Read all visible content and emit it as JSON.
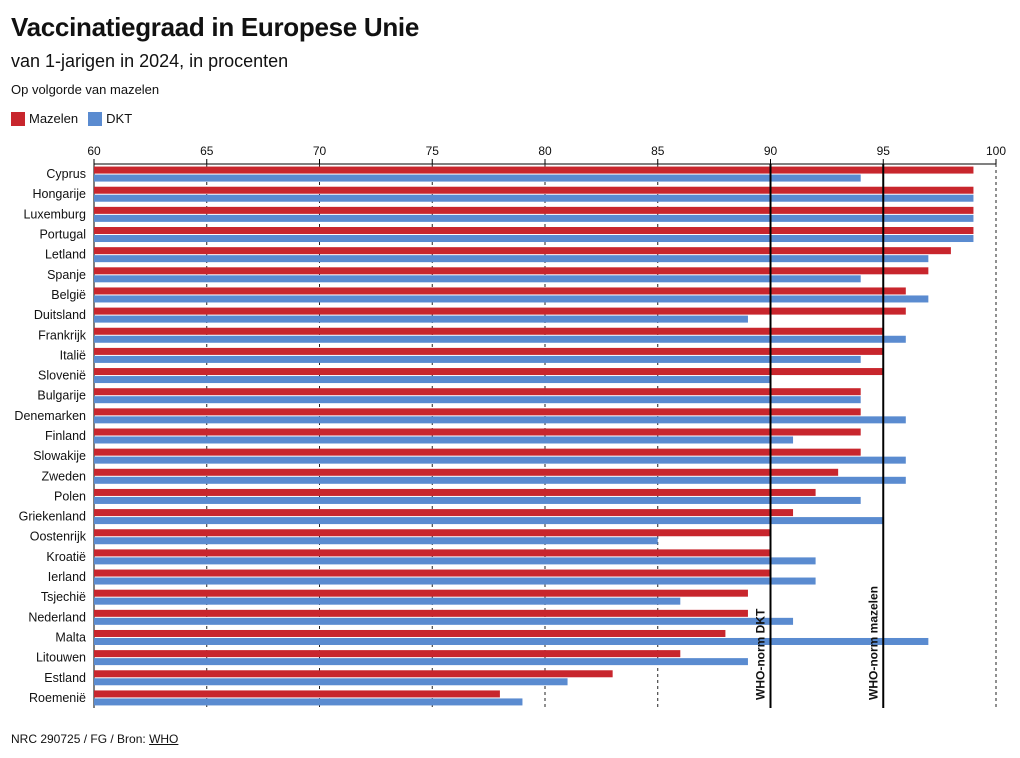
{
  "header": {
    "title": "Vaccinatiegraad in Europese Unie",
    "subtitle": "van 1-jarigen in 2024, in procenten",
    "note": "Op volgorde van mazelen"
  },
  "legend": [
    {
      "label": "Mazelen",
      "color": "#c8262d"
    },
    {
      "label": "DKT",
      "color": "#5a8bd0"
    }
  ],
  "footer": {
    "prefix": "NRC 290725 / FG / Bron: ",
    "source_link": "WHO"
  },
  "chart_data": {
    "type": "bar",
    "orientation": "horizontal",
    "xlim": [
      60,
      100
    ],
    "xticks": [
      60,
      65,
      70,
      75,
      80,
      85,
      90,
      95,
      100
    ],
    "categories": [
      "Cyprus",
      "Hongarije",
      "Luxemburg",
      "Portugal",
      "Letland",
      "Spanje",
      "België",
      "Duitsland",
      "Frankrijk",
      "Italië",
      "Slovenië",
      "Bulgarije",
      "Denemarken",
      "Finland",
      "Slowakije",
      "Zweden",
      "Polen",
      "Griekenland",
      "Oostenrijk",
      "Kroatië",
      "Ierland",
      "Tsjechië",
      "Nederland",
      "Malta",
      "Litouwen",
      "Estland",
      "Roemenië"
    ],
    "series": [
      {
        "name": "Mazelen",
        "color": "#c8262d",
        "values": [
          99,
          99,
          99,
          99,
          98,
          97,
          96,
          96,
          95,
          95,
          95,
          94,
          94,
          94,
          94,
          93,
          92,
          91,
          90,
          90,
          90,
          89,
          89,
          88,
          86,
          83,
          78
        ]
      },
      {
        "name": "DKT",
        "color": "#5a8bd0",
        "values": [
          94,
          99,
          99,
          99,
          97,
          94,
          97,
          89,
          96,
          94,
          90,
          94,
          96,
          91,
          96,
          96,
          94,
          95,
          85,
          92,
          92,
          86,
          91,
          97,
          89,
          81,
          79
        ]
      }
    ],
    "reference_lines": [
      {
        "value": 90,
        "label": "WHO-norm DKT"
      },
      {
        "value": 95,
        "label": "WHO-norm mazelen"
      }
    ]
  }
}
